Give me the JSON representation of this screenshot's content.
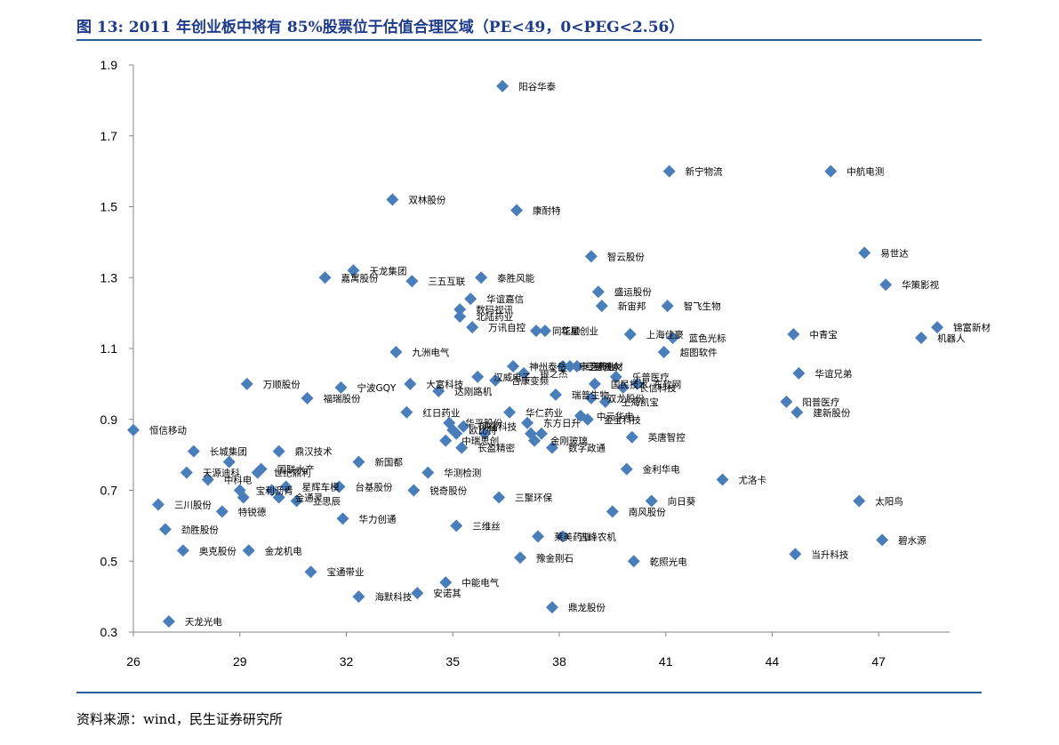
{
  "title": "图 13:  2011 年创业板中将有 85%股票位于估值合理区域（PE<49，0<PEG<2.56）",
  "source": "资料来源：wind，民生证券研究所",
  "colors": {
    "marker": "#4a7ebb",
    "title": "#1f3b8c",
    "rule": "#2e5c9a",
    "axis": "#868686"
  },
  "chart_data": {
    "type": "scatter",
    "xlim": [
      26,
      49
    ],
    "ylim": [
      0.3,
      1.9
    ],
    "x_ticks": [
      26,
      29,
      32,
      35,
      38,
      41,
      44,
      47
    ],
    "y_ticks": [
      0.3,
      0.5,
      0.7,
      0.9,
      1.1,
      1.3,
      1.5,
      1.7,
      1.9
    ],
    "grid": false,
    "points": [
      {
        "x": 26.0,
        "y": 0.87,
        "label": "恒信移动"
      },
      {
        "x": 27.0,
        "y": 0.33,
        "label": "天龙光电"
      },
      {
        "x": 26.7,
        "y": 0.66,
        "label": "三川股份"
      },
      {
        "x": 26.9,
        "y": 0.59,
        "label": "劲胜股份"
      },
      {
        "x": 27.4,
        "y": 0.53,
        "label": "奥克股份"
      },
      {
        "x": 27.5,
        "y": 0.75,
        "label": "天源迪科"
      },
      {
        "x": 27.7,
        "y": 0.81,
        "label": "长城集团"
      },
      {
        "x": 28.1,
        "y": 0.73,
        "label": "中科电"
      },
      {
        "x": 28.5,
        "y": 0.64,
        "label": "特锐德"
      },
      {
        "x": 28.7,
        "y": 0.78,
        "label": ""
      },
      {
        "x": 29.0,
        "y": 0.7,
        "label": "宝利沥青"
      },
      {
        "x": 29.1,
        "y": 0.68,
        "label": ""
      },
      {
        "x": 29.25,
        "y": 0.53,
        "label": "金龙机电"
      },
      {
        "x": 29.5,
        "y": 0.75,
        "label": "世纪鼎利"
      },
      {
        "x": 29.2,
        "y": 1.0,
        "label": "万顺股份"
      },
      {
        "x": 29.6,
        "y": 0.76,
        "label": "国联水产"
      },
      {
        "x": 29.9,
        "y": 0.7,
        "label": ""
      },
      {
        "x": 30.1,
        "y": 0.68,
        "label": "金通灵"
      },
      {
        "x": 30.3,
        "y": 0.71,
        "label": "星辉车模"
      },
      {
        "x": 30.1,
        "y": 0.81,
        "label": "鼎汉技术"
      },
      {
        "x": 30.6,
        "y": 0.67,
        "label": "立思辰"
      },
      {
        "x": 30.9,
        "y": 0.96,
        "label": "福瑞股份"
      },
      {
        "x": 31.0,
        "y": 0.47,
        "label": "宝通带业"
      },
      {
        "x": 31.4,
        "y": 1.3,
        "label": "嘉寓股份"
      },
      {
        "x": 31.8,
        "y": 0.71,
        "label": "台基股份"
      },
      {
        "x": 31.85,
        "y": 0.99,
        "label": "宁波GQY"
      },
      {
        "x": 31.9,
        "y": 0.62,
        "label": "华力创通"
      },
      {
        "x": 32.2,
        "y": 1.32,
        "label": "天龙集团"
      },
      {
        "x": 32.35,
        "y": 0.78,
        "label": "新国都"
      },
      {
        "x": 32.35,
        "y": 0.4,
        "label": "海默科技"
      },
      {
        "x": 33.3,
        "y": 1.52,
        "label": "双林股份"
      },
      {
        "x": 33.4,
        "y": 1.09,
        "label": "九洲电气"
      },
      {
        "x": 33.7,
        "y": 0.92,
        "label": "红日药业"
      },
      {
        "x": 33.8,
        "y": 1.0,
        "label": "大富科技"
      },
      {
        "x": 33.85,
        "y": 1.29,
        "label": "三五互联"
      },
      {
        "x": 33.9,
        "y": 0.7,
        "label": "锐奇股份"
      },
      {
        "x": 34.0,
        "y": 0.41,
        "label": "安诺其"
      },
      {
        "x": 34.3,
        "y": 0.75,
        "label": "华测检测"
      },
      {
        "x": 34.6,
        "y": 0.98,
        "label": "达刚路机"
      },
      {
        "x": 34.8,
        "y": 0.84,
        "label": "中瑞思创"
      },
      {
        "x": 34.8,
        "y": 0.44,
        "label": "中能电气"
      },
      {
        "x": 34.9,
        "y": 0.89,
        "label": "华平股份"
      },
      {
        "x": 35.0,
        "y": 0.87,
        "label": "欧比特"
      },
      {
        "x": 35.1,
        "y": 0.86,
        "label": ""
      },
      {
        "x": 35.1,
        "y": 0.6,
        "label": "三维丝"
      },
      {
        "x": 35.2,
        "y": 1.21,
        "label": "数码视讯"
      },
      {
        "x": 35.2,
        "y": 1.19,
        "label": "北陆药业"
      },
      {
        "x": 35.25,
        "y": 0.82,
        "label": "长盈精密"
      },
      {
        "x": 35.3,
        "y": 0.88,
        "label": "网宿科技"
      },
      {
        "x": 35.5,
        "y": 1.24,
        "label": "华谊嘉信"
      },
      {
        "x": 35.55,
        "y": 1.16,
        "label": "万讯自控"
      },
      {
        "x": 35.7,
        "y": 1.02,
        "label": "汉威电子"
      },
      {
        "x": 35.8,
        "y": 1.3,
        "label": "泰胜风能"
      },
      {
        "x": 35.9,
        "y": 0.86,
        "label": ""
      },
      {
        "x": 36.2,
        "y": 1.01,
        "label": "合康变频"
      },
      {
        "x": 36.3,
        "y": 0.68,
        "label": "三聚环保"
      },
      {
        "x": 36.4,
        "y": 1.84,
        "label": "阳谷华泰"
      },
      {
        "x": 36.6,
        "y": 0.92,
        "label": "华仁药业"
      },
      {
        "x": 36.7,
        "y": 1.05,
        "label": "神州泰岳"
      },
      {
        "x": 36.8,
        "y": 1.49,
        "label": "康耐特"
      },
      {
        "x": 36.9,
        "y": 0.51,
        "label": "豫金刚石"
      },
      {
        "x": 37.0,
        "y": 1.03,
        "label": "银之杰"
      },
      {
        "x": 37.1,
        "y": 0.89,
        "label": "东方日升"
      },
      {
        "x": 37.2,
        "y": 0.86,
        "label": ""
      },
      {
        "x": 37.3,
        "y": 0.84,
        "label": "金刚玻璃"
      },
      {
        "x": 37.35,
        "y": 1.15,
        "label": "同花顺"
      },
      {
        "x": 37.4,
        "y": 0.57,
        "label": "莱美药业"
      },
      {
        "x": 37.5,
        "y": 0.86,
        "label": ""
      },
      {
        "x": 37.6,
        "y": 1.15,
        "label": "华星创业"
      },
      {
        "x": 37.8,
        "y": 0.82,
        "label": "数字政通"
      },
      {
        "x": 37.8,
        "y": 0.37,
        "label": "鼎龙股份"
      },
      {
        "x": 37.9,
        "y": 0.97,
        "label": "瑞普生物"
      },
      {
        "x": 38.1,
        "y": 1.05,
        "label": "康芝药业"
      },
      {
        "x": 38.1,
        "y": 0.57,
        "label": "吉峰农机"
      },
      {
        "x": 38.3,
        "y": 1.05,
        "label": "经纬电材"
      },
      {
        "x": 38.5,
        "y": 1.05,
        "label": "易联众"
      },
      {
        "x": 38.6,
        "y": 0.91,
        "label": "中元华电"
      },
      {
        "x": 38.8,
        "y": 0.9,
        "label": "金宝科技"
      },
      {
        "x": 38.9,
        "y": 1.36,
        "label": "智云股份"
      },
      {
        "x": 38.9,
        "y": 0.96,
        "label": "双龙股份"
      },
      {
        "x": 39.0,
        "y": 1.0,
        "label": "国民技术"
      },
      {
        "x": 39.1,
        "y": 1.26,
        "label": "盛运股份"
      },
      {
        "x": 39.2,
        "y": 1.22,
        "label": "新宙邦"
      },
      {
        "x": 39.3,
        "y": 0.95,
        "label": "上海凯宝"
      },
      {
        "x": 39.5,
        "y": 0.64,
        "label": "南风股份"
      },
      {
        "x": 39.6,
        "y": 1.02,
        "label": "乐普医疗"
      },
      {
        "x": 39.8,
        "y": 0.99,
        "label": "长信科技"
      },
      {
        "x": 39.9,
        "y": 0.76,
        "label": "金利华电"
      },
      {
        "x": 40.0,
        "y": 1.14,
        "label": "上海佳豪"
      },
      {
        "x": 40.05,
        "y": 0.85,
        "label": "英唐智控"
      },
      {
        "x": 40.1,
        "y": 0.5,
        "label": "乾照光电"
      },
      {
        "x": 40.2,
        "y": 1.0,
        "label": "东软网"
      },
      {
        "x": 40.6,
        "y": 0.67,
        "label": "向日葵"
      },
      {
        "x": 40.95,
        "y": 1.09,
        "label": "超图软件"
      },
      {
        "x": 41.05,
        "y": 1.22,
        "label": "智飞生物"
      },
      {
        "x": 41.1,
        "y": 1.6,
        "label": "新宁物流"
      },
      {
        "x": 41.2,
        "y": 1.13,
        "label": "蓝色光标"
      },
      {
        "x": 42.6,
        "y": 0.73,
        "label": "尤洛卡"
      },
      {
        "x": 44.4,
        "y": 0.95,
        "label": "阳普医疗"
      },
      {
        "x": 44.6,
        "y": 1.14,
        "label": "中青宝"
      },
      {
        "x": 44.65,
        "y": 0.52,
        "label": "当升科技"
      },
      {
        "x": 44.7,
        "y": 0.92,
        "label": "建新股份"
      },
      {
        "x": 44.75,
        "y": 1.03,
        "label": "华谊兄弟"
      },
      {
        "x": 45.65,
        "y": 1.6,
        "label": "中航电测"
      },
      {
        "x": 46.45,
        "y": 0.67,
        "label": "太阳鸟"
      },
      {
        "x": 46.6,
        "y": 1.37,
        "label": "易世达"
      },
      {
        "x": 47.1,
        "y": 0.56,
        "label": "碧水源"
      },
      {
        "x": 47.2,
        "y": 1.28,
        "label": "华策影视"
      },
      {
        "x": 48.2,
        "y": 1.13,
        "label": "机器人"
      },
      {
        "x": 48.65,
        "y": 1.16,
        "label": "锦富新材"
      }
    ]
  }
}
